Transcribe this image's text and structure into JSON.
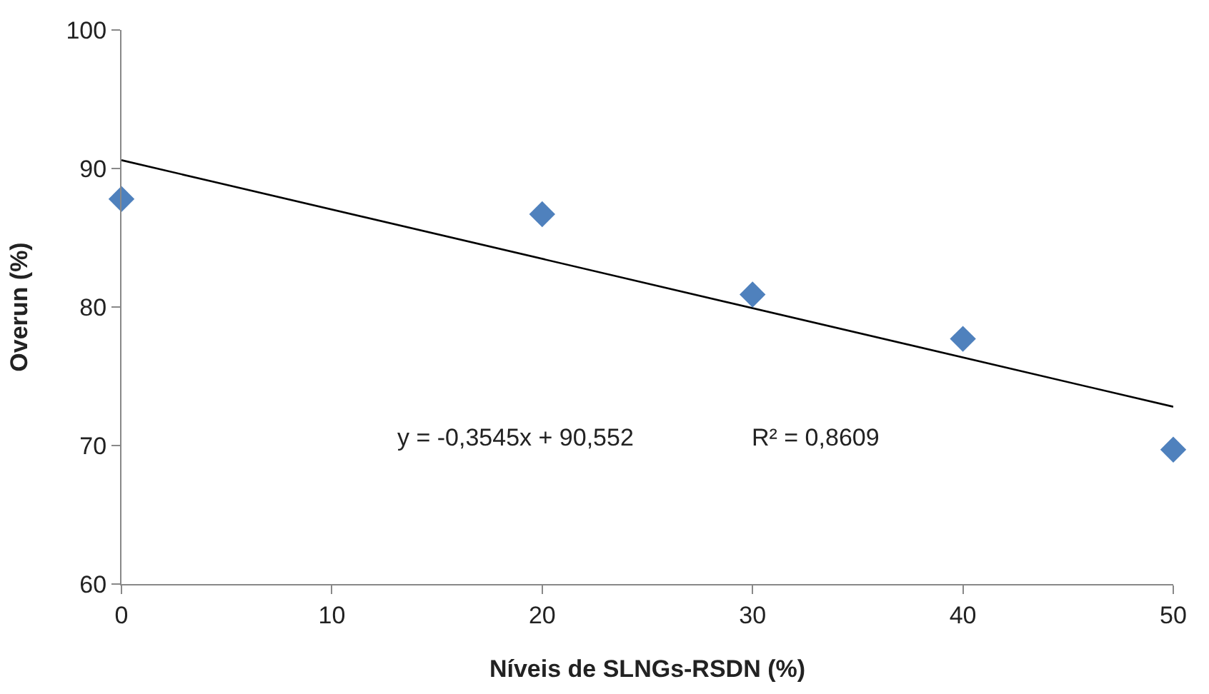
{
  "chart_data": {
    "type": "scatter",
    "xlabel": "Níveis de SLNGs-RSDN (%)",
    "ylabel": "Overun (%)",
    "xlim": [
      0,
      50
    ],
    "xticks": [
      0,
      10,
      20,
      30,
      40,
      50
    ],
    "ylim": [
      60,
      100
    ],
    "yticks": [
      60,
      70,
      80,
      90,
      100
    ],
    "marker": "diamond",
    "series": [
      {
        "color": "#4f81bd",
        "x": [
          0,
          20,
          30,
          40,
          50
        ],
        "values": [
          87.8,
          86.7,
          80.9,
          77.7,
          69.7
        ]
      },
      {
        "type": "line",
        "color": "#000000",
        "marker": "none",
        "x": [
          0,
          50
        ],
        "values": [
          90.6,
          72.8
        ]
      }
    ],
    "annotations": [
      "y = -0,3545x + 90,552",
      "R² = 0,8609"
    ]
  }
}
